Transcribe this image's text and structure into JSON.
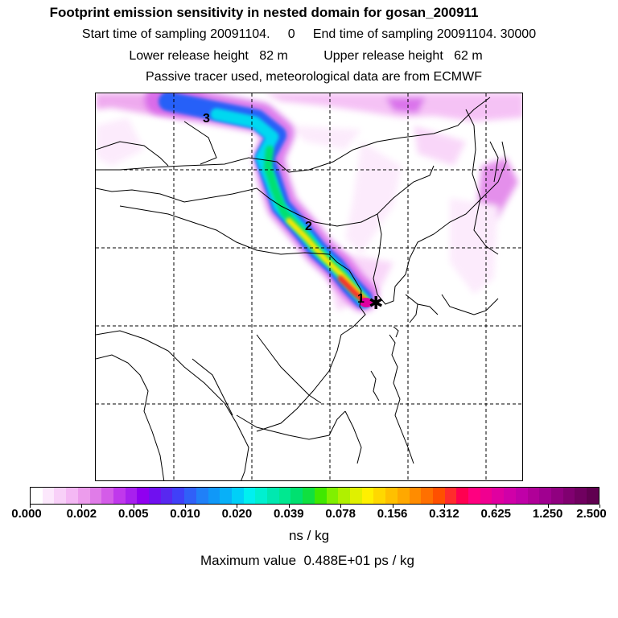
{
  "header": {
    "title": "Footprint emission sensitivity in nested domain for gosan_200911",
    "line2": "Start time of sampling 20091104.     0     End time of sampling 20091104. 30000",
    "line3": "Lower release height   82 m          Upper release height   62 m",
    "line4": "Passive tracer used, meteorological data are from ECMWF"
  },
  "map": {
    "markers": [
      {
        "label": "1"
      },
      {
        "label": "2"
      },
      {
        "label": "3"
      }
    ],
    "receptor_symbol": "✱"
  },
  "colorbar": {
    "units": "ns / kg",
    "tick_labels": [
      "0.000",
      "0.002",
      "0.005",
      "0.010",
      "0.020",
      "0.039",
      "0.078",
      "0.156",
      "0.312",
      "0.625",
      "1.250",
      "2.500"
    ],
    "colors": [
      "#ffffff",
      "#fce8fc",
      "#f8d0f8",
      "#f4b8f4",
      "#ec9cec",
      "#e07ce8",
      "#d45ce8",
      "#c038ec",
      "#a820ee",
      "#9000f0",
      "#7010f0",
      "#5828f0",
      "#4040f8",
      "#3060f8",
      "#2080f8",
      "#1098f8",
      "#08b0f8",
      "#00d0f8",
      "#00f0f0",
      "#00f0d0",
      "#00e8b0",
      "#00e890",
      "#00e070",
      "#10e040",
      "#40e800",
      "#80f000",
      "#b0f000",
      "#e0f000",
      "#fff000",
      "#ffd800",
      "#ffc000",
      "#ffa800",
      "#ff8c00",
      "#ff7000",
      "#ff5000",
      "#ff2c2c",
      "#ff0050",
      "#ff0080",
      "#f00090",
      "#e000a0",
      "#d000a8",
      "#c000a8",
      "#b00098",
      "#a00090",
      "#900080",
      "#800070",
      "#700060",
      "#600050"
    ]
  },
  "footer": {
    "max_value": "Maximum value  0.488E+01 ps / kg"
  }
}
